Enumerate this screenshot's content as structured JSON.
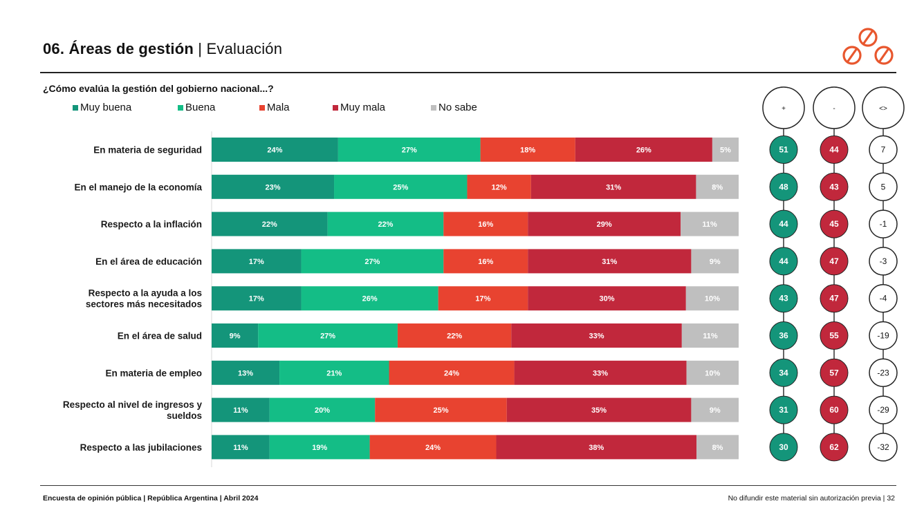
{
  "header": {
    "title_bold": "06. Áreas de gestión",
    "title_rest": "Evaluación",
    "title_separator": "|"
  },
  "question": "¿Cómo evalúa la gestión del gobierno nacional...?",
  "legend": [
    {
      "label": "Muy buena",
      "color": "#14957a"
    },
    {
      "label": "Buena",
      "color": "#14bd86"
    },
    {
      "label": "Mala",
      "color": "#e84330"
    },
    {
      "label": "Muy mala",
      "color": "#c1283c"
    },
    {
      "label": "No sabe",
      "color": "#bfbfbf"
    }
  ],
  "summary_headers": [
    "+",
    "-",
    "<>"
  ],
  "summary_colors": {
    "plus": "#14957a",
    "minus": "#c1283c",
    "diff": "#ffffff"
  },
  "chart_data": {
    "type": "bar",
    "orientation": "horizontal",
    "stacked": true,
    "categories": [
      [
        "En materia de seguridad"
      ],
      [
        "En el manejo de la economía"
      ],
      [
        "Respecto a la inflación"
      ],
      [
        "En el área de educación"
      ],
      [
        "Respecto a la ayuda a los",
        "sectores más necesitados"
      ],
      [
        "En el área de salud"
      ],
      [
        "En materia de empleo"
      ],
      [
        "Respecto al nivel de ingresos y",
        "sueldos"
      ],
      [
        "Respecto a las jubilaciones"
      ]
    ],
    "series": [
      {
        "name": "Muy buena",
        "values": [
          24,
          23,
          22,
          17,
          17,
          9,
          13,
          11,
          11
        ]
      },
      {
        "name": "Buena",
        "values": [
          27,
          25,
          22,
          27,
          26,
          27,
          21,
          20,
          19
        ]
      },
      {
        "name": "Mala",
        "values": [
          18,
          12,
          16,
          16,
          17,
          22,
          24,
          25,
          24
        ]
      },
      {
        "name": "Muy mala",
        "values": [
          26,
          31,
          29,
          31,
          30,
          33,
          33,
          35,
          38
        ]
      },
      {
        "name": "No sabe",
        "values": [
          5,
          8,
          11,
          9,
          10,
          11,
          10,
          9,
          8
        ]
      }
    ],
    "unit": "%",
    "summary": {
      "plus": [
        51,
        48,
        44,
        44,
        43,
        36,
        34,
        31,
        30
      ],
      "minus": [
        44,
        43,
        45,
        47,
        47,
        55,
        57,
        60,
        62
      ],
      "diff": [
        7,
        5,
        -1,
        -3,
        -4,
        -19,
        -23,
        -29,
        -32
      ]
    }
  },
  "footer": {
    "left": "Encuesta de opinión pública | República Argentina | Abril 2024",
    "right": "No difundir este material sin autorización previa | 32"
  }
}
